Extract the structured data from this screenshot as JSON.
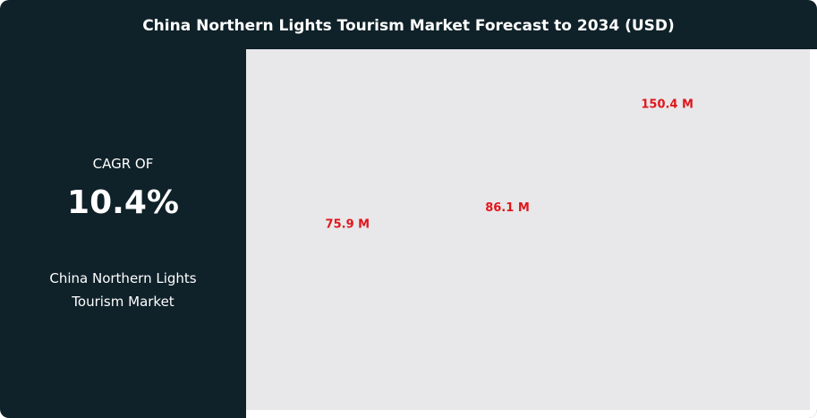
{
  "chart_data": {
    "type": "bar",
    "title": "China Northern Lights Tourism Market Forecast to 2034 (USD)",
    "categories": [
      null,
      null,
      null
    ],
    "values": [
      75.9,
      86.1,
      150.4
    ],
    "value_labels": [
      "75.9 M",
      "86.1 M",
      "150.4 M"
    ],
    "label_color": "#e0161b"
  },
  "panel": {
    "caption": "CAGR OF",
    "value": "10.4%",
    "market": "China Northern Lights Tourism Market"
  }
}
